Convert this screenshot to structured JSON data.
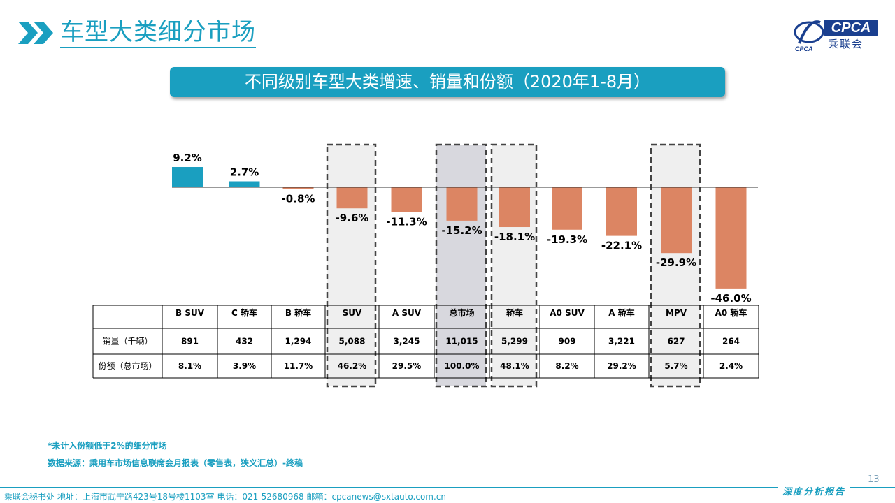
{
  "header": {
    "title": "车型大类细分市场",
    "logo_text": "乘联会",
    "logo_abbr": "CPCA"
  },
  "banner": {
    "text": "不同级别车型大类增速、销量和份额（2020年1-8月）"
  },
  "chart_data": {
    "type": "bar",
    "categories": [
      "B SUV",
      "C 轿车",
      "B 轿车",
      "SUV",
      "A SUV",
      "总市场",
      "轿车",
      "A0 SUV",
      "A 轿车",
      "MPV",
      "A0 轿车"
    ],
    "series": [
      {
        "values": [
          9.2,
          2.7,
          -0.8,
          -9.6,
          -11.3,
          -15.2,
          -18.1,
          -19.3,
          -22.1,
          -29.9,
          -46.0
        ]
      }
    ],
    "value_labels": [
      "9.2%",
      "2.7%",
      "-0.8%",
      "-9.6%",
      "-11.3%",
      "-15.2%",
      "-18.1%",
      "-19.3%",
      "-22.1%",
      "-29.9%",
      "-46.0%"
    ],
    "positive_color": "#1a9fc0",
    "negative_color": "#dc8563",
    "highlighted": [
      "SUV",
      "总市场",
      "轿车",
      "MPV"
    ],
    "table": {
      "rows": [
        {
          "label": "销量（千辆）",
          "values": [
            "891",
            "432",
            "1,294",
            "5,088",
            "3,245",
            "11,015",
            "5,299",
            "909",
            "3,221",
            "627",
            "264"
          ]
        },
        {
          "label": "份额（总市场）",
          "values": [
            "8.1%",
            "3.9%",
            "11.7%",
            "46.2%",
            "29.5%",
            "100.0%",
            "48.1%",
            "8.2%",
            "29.2%",
            "5.7%",
            "2.4%"
          ]
        }
      ]
    }
  },
  "notes": {
    "note1": "*未计入份额低于2%的细分市场",
    "note2": "数据来源：乘用车市场信息联席会月报表（零售表，狭义汇总）-终稿"
  },
  "footer": {
    "text": "乘联会秘书处   地址：上海市武宁路423号18号楼1103室  电话：021-52680968   邮箱：cpcanews@sxtauto.com.cn",
    "right": "深度分析报告",
    "page_number": "13"
  }
}
